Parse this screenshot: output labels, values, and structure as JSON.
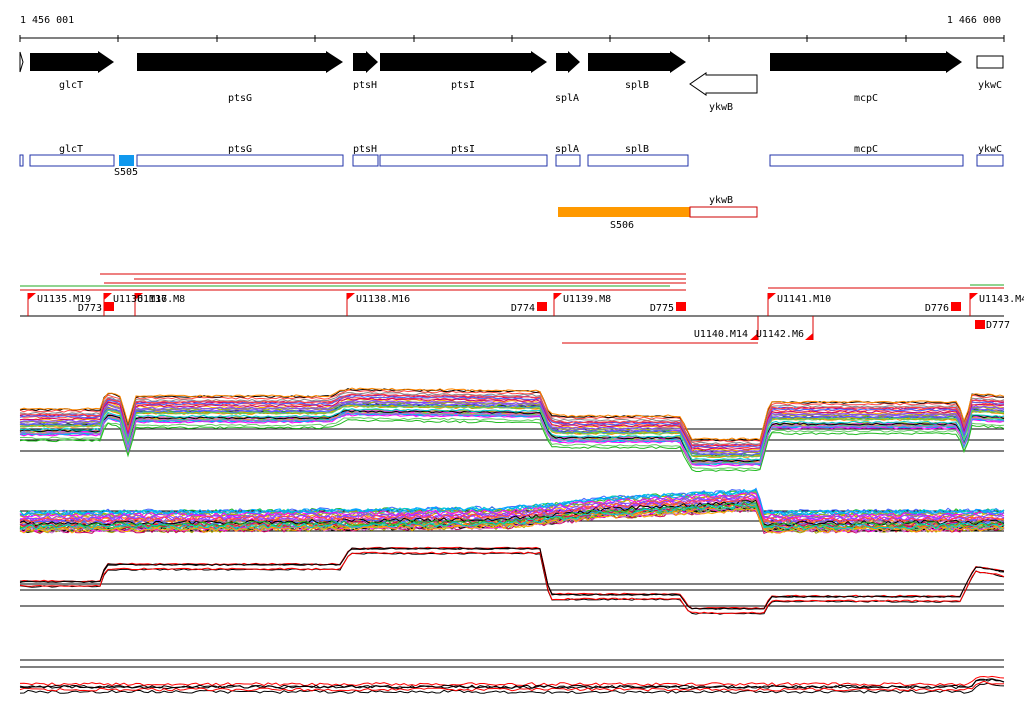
{
  "ruler": {
    "start_label": "1 456 001",
    "end_label": "1 466 000"
  },
  "colors": {
    "gene_fill": "#000000",
    "annotation_stroke": "#2233aa",
    "sigma_box": "#1199ee",
    "segment_fill": "#ff9900",
    "segment_outline": "#cc0000",
    "promoter_flag": "#ff0000",
    "terminator_box": "#ff0000",
    "trace_reference": "#000000",
    "trace_highlight": "#ff0000"
  },
  "genes": [
    {
      "name": "glcT"
    },
    {
      "name": "ptsG"
    },
    {
      "name": "ptsH"
    },
    {
      "name": "ptsI"
    },
    {
      "name": "splA"
    },
    {
      "name": "splB"
    },
    {
      "name": "ykwB"
    },
    {
      "name": "mcpC"
    },
    {
      "name": "ykwC"
    }
  ],
  "annotation_labels": {
    "a1": "glcT",
    "a2": "ptsG",
    "a3": "ptsH",
    "a4": "ptsI",
    "a5": "splA",
    "a6": "splB",
    "a7": "mcpC",
    "a8": "ykwC",
    "sigma": "S505",
    "seg_label": "S506",
    "seg_gene": "ykwB"
  },
  "upshifts": {
    "u1": "U1135.M19",
    "u2": "U1136.M16",
    "u3": "U1137.M8",
    "u4": "U1138.M16",
    "u5": "U1139.M8",
    "u6": "U1141.M10",
    "u7": "U1143.M4",
    "u8": "U1140.M14",
    "u9": "U1142.M6"
  },
  "downshifts": {
    "d1": "D773",
    "d2": "D774",
    "d3": "D775",
    "d4": "D776",
    "d5": "D777"
  }
}
